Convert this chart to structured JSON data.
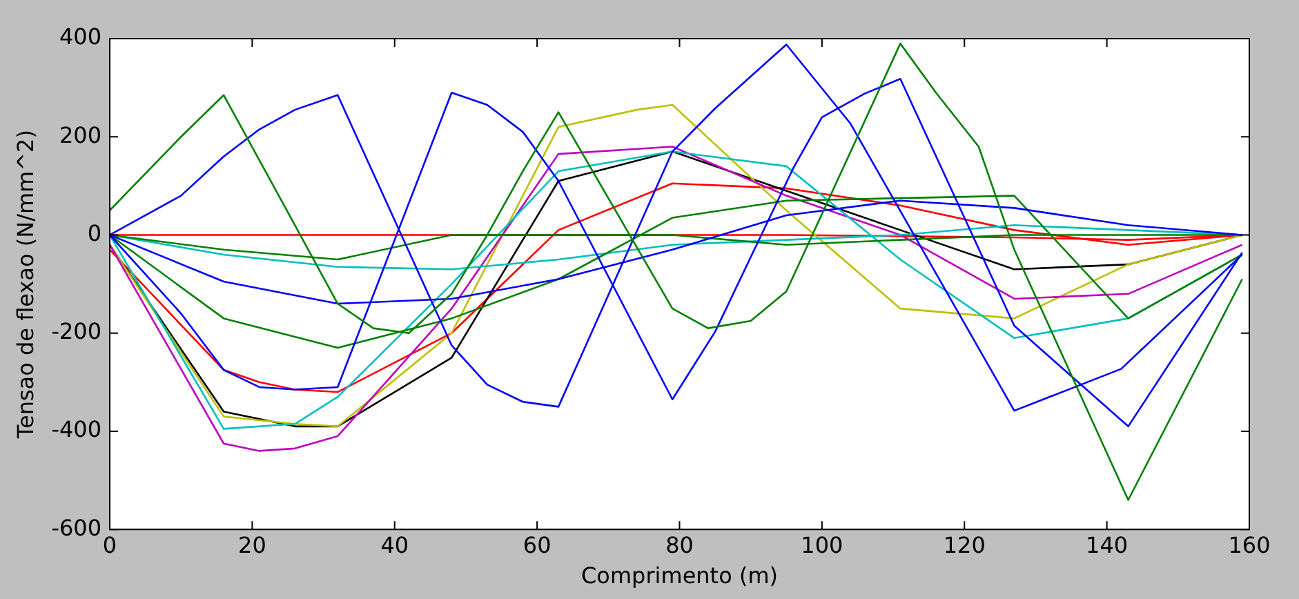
{
  "chart_data": {
    "type": "line",
    "xlabel": "Comprimento (m)",
    "ylabel": "Tensao de flexao (N/mm^2)",
    "xlim": [
      0,
      160
    ],
    "xticks": [
      0,
      20,
      40,
      60,
      80,
      100,
      120,
      140,
      160
    ],
    "ylim": [
      -600,
      400
    ],
    "yticks": [
      -600,
      -400,
      -200,
      0,
      200,
      400
    ],
    "grid": false,
    "legend": false,
    "marker": "none",
    "line_style": "solid",
    "series": [
      {
        "color": "#008000",
        "x": [
          0,
          10,
          16,
          26,
          32,
          37,
          42,
          48,
          53,
          58,
          63,
          79,
          84,
          90,
          95,
          111,
          116,
          122,
          127,
          143,
          159
        ],
        "values": [
          50,
          200,
          285,
          20,
          -140,
          -190,
          -200,
          -120,
          0,
          130,
          250,
          -150,
          -190,
          -175,
          -115,
          390,
          290,
          180,
          -30,
          -540,
          -90
        ]
      },
      {
        "color": "#0000ff",
        "x": [
          0,
          10,
          16,
          21,
          26,
          32,
          48,
          53,
          58,
          63,
          79,
          85,
          95,
          104,
          127,
          142,
          159
        ],
        "values": [
          0,
          80,
          160,
          215,
          255,
          285,
          -225,
          -305,
          -340,
          -350,
          170,
          258,
          388,
          227,
          -358,
          -273,
          -40
        ]
      },
      {
        "color": "#0000ff",
        "x": [
          0,
          10,
          16,
          21,
          26,
          32,
          48,
          53,
          58,
          63,
          79,
          85,
          90,
          96,
          100,
          106,
          111,
          127,
          143,
          159
        ],
        "values": [
          0,
          -160,
          -275,
          -310,
          -315,
          -310,
          290,
          265,
          210,
          110,
          -335,
          -197,
          -45,
          137,
          240,
          288,
          318,
          -185,
          -390,
          -36
        ]
      },
      {
        "color": "#0000ff",
        "x": [
          0,
          16,
          32,
          48,
          63,
          79,
          95,
          111,
          127,
          143,
          159
        ],
        "values": [
          0,
          -95,
          -140,
          -130,
          -90,
          -30,
          40,
          70,
          55,
          20,
          0
        ]
      },
      {
        "color": "#008000",
        "x": [
          0,
          16,
          32,
          48,
          63,
          79,
          95,
          111,
          127,
          143,
          159
        ],
        "values": [
          0,
          -170,
          -230,
          -170,
          -90,
          35,
          70,
          75,
          80,
          -170,
          -40
        ]
      },
      {
        "color": "#008000",
        "x": [
          0,
          16,
          32,
          48,
          63,
          79,
          95,
          111,
          127,
          143,
          159
        ],
        "values": [
          0,
          -30,
          -50,
          0,
          0,
          0,
          -20,
          -10,
          0,
          0,
          0
        ]
      },
      {
        "color": "#00bfbf",
        "x": [
          0,
          16,
          26,
          32,
          48,
          63,
          79,
          95,
          111,
          127,
          143,
          159
        ],
        "values": [
          0,
          -395,
          -385,
          -330,
          -100,
          130,
          170,
          140,
          -50,
          -210,
          -170,
          -40
        ]
      },
      {
        "color": "#00bfbf",
        "x": [
          0,
          16,
          32,
          48,
          63,
          79,
          95,
          111,
          127,
          143,
          159
        ],
        "values": [
          0,
          -40,
          -65,
          -70,
          -50,
          -20,
          -10,
          0,
          20,
          10,
          0
        ]
      },
      {
        "color": "#bf00bf",
        "x": [
          0,
          16,
          21,
          26,
          32,
          48,
          63,
          79,
          95,
          111,
          127,
          143,
          159
        ],
        "values": [
          -20,
          -425,
          -440,
          -435,
          -410,
          -150,
          165,
          180,
          80,
          0,
          -130,
          -120,
          -20
        ]
      },
      {
        "color": "#bfbf00",
        "x": [
          0,
          16,
          26,
          32,
          48,
          63,
          74,
          79,
          95,
          111,
          127,
          143,
          159
        ],
        "values": [
          -20,
          -370,
          -385,
          -390,
          -200,
          220,
          255,
          265,
          50,
          -150,
          -170,
          -60,
          0
        ]
      },
      {
        "color": "#000000",
        "x": [
          0,
          16,
          26,
          32,
          48,
          63,
          79,
          95,
          111,
          127,
          143,
          159
        ],
        "values": [
          -20,
          -360,
          -390,
          -390,
          -250,
          110,
          170,
          90,
          10,
          -70,
          -60,
          0
        ]
      },
      {
        "color": "#ff0000",
        "x": [
          0,
          16,
          21,
          26,
          32,
          48,
          63,
          79,
          95,
          111,
          127,
          143,
          159
        ],
        "values": [
          -30,
          -275,
          -300,
          -315,
          -320,
          -200,
          10,
          105,
          95,
          60,
          10,
          -20,
          0
        ]
      },
      {
        "color": "#ff0000",
        "x": [
          0,
          32,
          63,
          95,
          127,
          143,
          159
        ],
        "values": [
          0,
          0,
          0,
          0,
          -5,
          -10,
          0
        ]
      }
    ]
  }
}
